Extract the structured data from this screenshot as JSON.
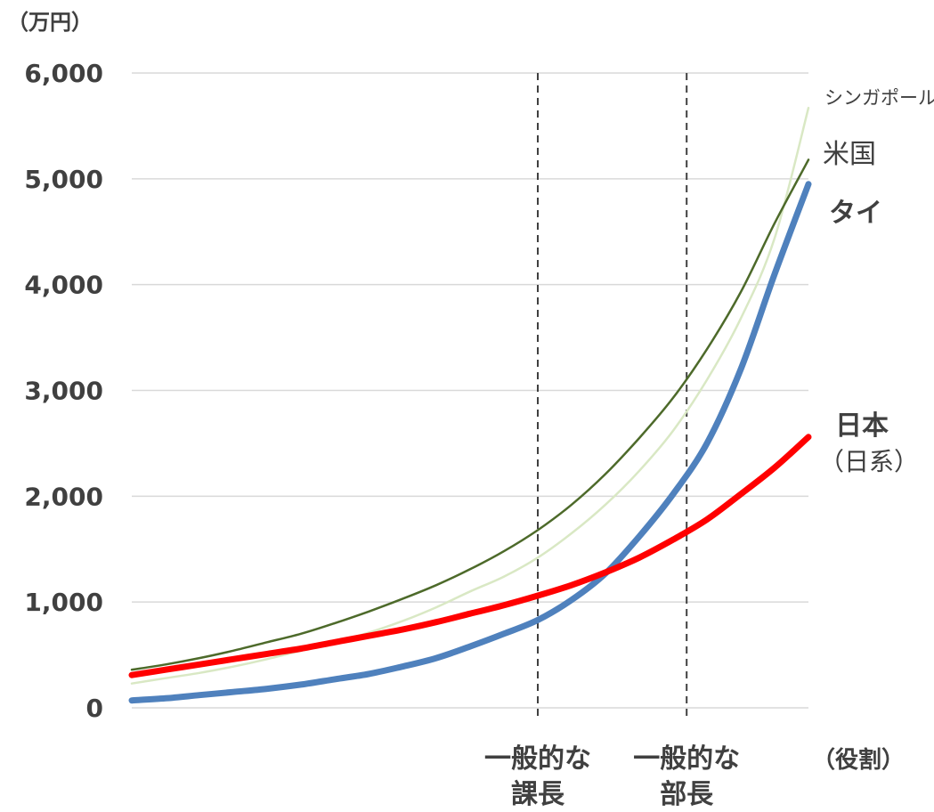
{
  "chart_data": {
    "type": "line",
    "ylabel": "（万円）",
    "xlabel": "（役割）",
    "ylim": [
      0,
      6000
    ],
    "yticks": [
      "0",
      "1,000",
      "2,000",
      "3,000",
      "4,000",
      "5,000",
      "6,000"
    ],
    "ytick_values": [
      0,
      1000,
      2000,
      3000,
      4000,
      5000,
      6000
    ],
    "x": [
      0,
      1,
      2,
      3,
      4,
      5,
      6,
      7,
      8,
      9,
      10,
      11,
      12,
      13,
      14,
      15,
      16,
      17,
      18,
      19,
      20
    ],
    "categories": [
      {
        "line1": "一般的な",
        "line2": "課長",
        "x": 12
      },
      {
        "line1": "一般的な",
        "line2": "部長",
        "x": 16.4
      }
    ],
    "grid": true,
    "series": [
      {
        "name": "シンガポール",
        "color": "#d9e8c4",
        "values": [
          230,
          280,
          330,
          390,
          460,
          540,
          620,
          710,
          820,
          950,
          1100,
          1240,
          1420,
          1650,
          1920,
          2240,
          2620,
          3100,
          3680,
          4440,
          5670
        ]
      },
      {
        "name": "米国",
        "color": "#4d6a2a",
        "values": [
          360,
          410,
          470,
          540,
          620,
          700,
          800,
          910,
          1030,
          1160,
          1310,
          1480,
          1680,
          1920,
          2210,
          2550,
          2930,
          3390,
          3930,
          4580,
          5180
        ]
      },
      {
        "name": "タイ",
        "color": "#4f81bd",
        "values": [
          70,
          90,
          120,
          150,
          180,
          220,
          270,
          320,
          390,
          470,
          580,
          700,
          830,
          1020,
          1270,
          1620,
          2020,
          2500,
          3200,
          4100,
          4950
        ]
      },
      {
        "name": "日本",
        "sub": "（日系）",
        "color": "#ff0000",
        "values": [
          310,
          360,
          410,
          460,
          510,
          560,
          620,
          680,
          740,
          810,
          890,
          970,
          1060,
          1160,
          1280,
          1420,
          1590,
          1780,
          2020,
          2270,
          2560
        ]
      }
    ]
  },
  "labels": {
    "singapore": "シンガポール",
    "usa": "米国",
    "thailand": "タイ",
    "japan": "日本",
    "japan_sub": "（日系）"
  }
}
